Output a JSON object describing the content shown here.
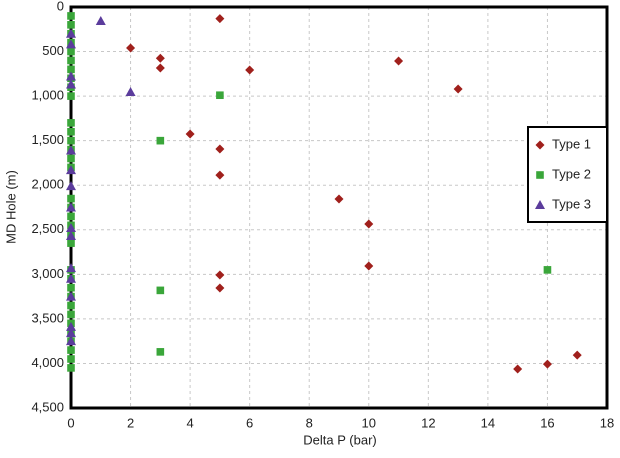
{
  "chart_data": {
    "type": "scatter",
    "x_label": "Delta P (bar)",
    "y_label": "MD Hole (m)",
    "xlim": [
      0,
      18
    ],
    "xticks": [
      0,
      2,
      4,
      6,
      8,
      10,
      12,
      14,
      16,
      18
    ],
    "ylim": [
      0,
      4500
    ],
    "y_inverted": true,
    "yticks": [
      0,
      500,
      {
        "value": 1000,
        "label": "1,000"
      },
      {
        "value": 1500,
        "label": "1,500"
      },
      {
        "value": 2000,
        "label": "2,000"
      },
      {
        "value": 2500,
        "label": "2,500"
      },
      {
        "value": 3000,
        "label": "3,000"
      },
      {
        "value": 3500,
        "label": "3,500"
      },
      {
        "value": 4000,
        "label": "4,000"
      },
      {
        "value": 4500,
        "label": "4,500"
      }
    ],
    "grid": true,
    "legend": "right",
    "series": [
      {
        "name": "Type 1",
        "color": "#a0201c",
        "marker": "diamond",
        "x": [
          5,
          2,
          3,
          3,
          6,
          11,
          13,
          4,
          5,
          5,
          9,
          10,
          10,
          5,
          5,
          17,
          16,
          15
        ],
        "y": [
          130,
          460,
          575,
          685,
          707,
          606,
          920,
          1425,
          1594,
          1886,
          2155,
          2435,
          2907,
          3008,
          3154,
          3906,
          4007,
          4063
        ]
      },
      {
        "name": "Type 2",
        "color": "#3aa63a",
        "marker": "square",
        "x": [
          0,
          0,
          0,
          0,
          0,
          0,
          0,
          0,
          0,
          0,
          0,
          0,
          0,
          0,
          0,
          0,
          0,
          0,
          0,
          0,
          0,
          0,
          0,
          0,
          0,
          0,
          0,
          0,
          0,
          0,
          0,
          0,
          0,
          0,
          5,
          3,
          16,
          3,
          3
        ],
        "y": [
          100,
          200,
          300,
          400,
          500,
          600,
          700,
          800,
          900,
          1000,
          1300,
          1400,
          1500,
          1600,
          1700,
          1800,
          2150,
          2250,
          2350,
          2450,
          2550,
          2650,
          2950,
          3050,
          3150,
          3250,
          3350,
          3450,
          3550,
          3650,
          3750,
          3850,
          3950,
          4050,
          990,
          1500,
          2950,
          3180,
          3870
        ]
      },
      {
        "name": "Type 3",
        "color": "#5b3c9c",
        "marker": "triangle",
        "x": [
          1,
          2,
          0,
          0,
          0,
          0,
          0,
          0,
          0,
          0,
          0,
          0,
          0,
          0,
          0,
          0,
          0,
          0
        ],
        "y": [
          157,
          954,
          300,
          420,
          780,
          870,
          1610,
          1830,
          2010,
          2250,
          2480,
          2570,
          2930,
          3050,
          3250,
          3590,
          3660,
          3750
        ]
      }
    ]
  }
}
